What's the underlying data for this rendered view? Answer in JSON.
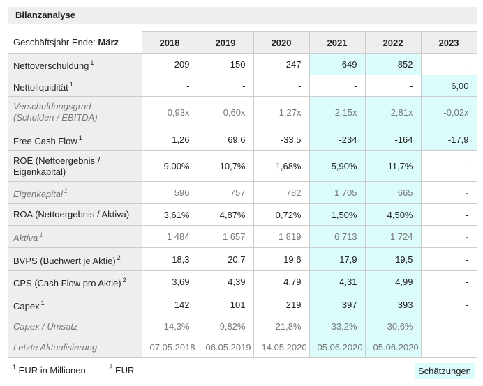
{
  "title": "Bilanzanalyse",
  "header": {
    "label_prefix": "Geschäftsjahr Ende: ",
    "label_month": "März",
    "years": [
      "2018",
      "2019",
      "2020",
      "2021",
      "2022",
      "2023"
    ]
  },
  "rows": [
    {
      "label": "Nettoverschuldung",
      "note": "1",
      "italic": false,
      "values": [
        "209",
        "150",
        "247",
        "649",
        "852",
        "-"
      ],
      "estimate": [
        false,
        false,
        false,
        true,
        true,
        false
      ]
    },
    {
      "label": "Nettoliquidität",
      "note": "1",
      "italic": false,
      "values": [
        "-",
        "-",
        "-",
        "-",
        "-",
        "6,00"
      ],
      "estimate": [
        false,
        false,
        false,
        false,
        false,
        true
      ]
    },
    {
      "label": "Verschuldungsgrad (Schulden / EBITDA)",
      "note": "",
      "italic": true,
      "values": [
        "0,93x",
        "0,60x",
        "1,27x",
        "2,15x",
        "2,81x",
        "-0,02x"
      ],
      "estimate": [
        false,
        false,
        false,
        true,
        true,
        true
      ]
    },
    {
      "label": "Free Cash Flow",
      "note": "1",
      "italic": false,
      "values": [
        "1,26",
        "69,6",
        "-33,5",
        "-234",
        "-164",
        "-17,9"
      ],
      "estimate": [
        false,
        false,
        false,
        true,
        true,
        true
      ]
    },
    {
      "label": "ROE (Nettoergebnis / Eigenkapital)",
      "note": "",
      "italic": false,
      "values": [
        "9,00%",
        "10,7%",
        "1,68%",
        "5,90%",
        "11,7%",
        "-"
      ],
      "estimate": [
        false,
        false,
        false,
        true,
        true,
        false
      ]
    },
    {
      "label": "Eigenkapital",
      "note": "1",
      "italic": true,
      "values": [
        "596",
        "757",
        "782",
        "1 705",
        "665",
        "-"
      ],
      "estimate": [
        false,
        false,
        false,
        true,
        true,
        false
      ]
    },
    {
      "label": "ROA (Nettoergebnis / Aktiva)",
      "note": "",
      "italic": false,
      "values": [
        "3,61%",
        "4,87%",
        "0,72%",
        "1,50%",
        "4,50%",
        "-"
      ],
      "estimate": [
        false,
        false,
        false,
        true,
        true,
        false
      ]
    },
    {
      "label": "Aktiva",
      "note": "1",
      "italic": true,
      "values": [
        "1 484",
        "1 657",
        "1 819",
        "6 713",
        "1 724",
        "-"
      ],
      "estimate": [
        false,
        false,
        false,
        true,
        true,
        false
      ]
    },
    {
      "label": "BVPS (Buchwert je Aktie)",
      "note": "2",
      "italic": false,
      "values": [
        "18,3",
        "20,7",
        "19,6",
        "17,9",
        "19,5",
        "-"
      ],
      "estimate": [
        false,
        false,
        false,
        true,
        true,
        false
      ]
    },
    {
      "label": "CPS (Cash Flow pro Aktie)",
      "note": "2",
      "italic": false,
      "values": [
        "3,69",
        "4,39",
        "4,79",
        "4,31",
        "4,99",
        "-"
      ],
      "estimate": [
        false,
        false,
        false,
        true,
        true,
        false
      ]
    },
    {
      "label": "Capex",
      "note": "1",
      "italic": false,
      "values": [
        "142",
        "101",
        "219",
        "397",
        "393",
        "-"
      ],
      "estimate": [
        false,
        false,
        false,
        true,
        true,
        false
      ]
    },
    {
      "label": "Capex / Umsatz",
      "note": "",
      "italic": true,
      "values": [
        "14,3%",
        "9,82%",
        "21,8%",
        "33,2%",
        "30,6%",
        "-"
      ],
      "estimate": [
        false,
        false,
        false,
        true,
        true,
        false
      ]
    },
    {
      "label": "Letzte Aktualisierung",
      "note": "",
      "italic": true,
      "values": [
        "07.05.2018",
        "06.05.2019",
        "14.05.2020",
        "05.06.2020",
        "05.06.2020",
        "-"
      ],
      "estimate": [
        false,
        false,
        false,
        true,
        true,
        false
      ]
    }
  ],
  "footnotes": [
    {
      "mark": "1",
      "text": "EUR in Millionen"
    },
    {
      "mark": "2",
      "text": "EUR"
    }
  ],
  "legend": {
    "estimates_label": "Schätzungen",
    "estimate_color": "#dcfcfc"
  }
}
